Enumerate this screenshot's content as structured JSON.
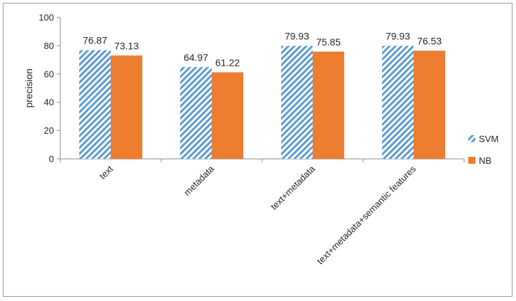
{
  "chart_data": {
    "type": "bar",
    "title": "",
    "xlabel": "",
    "ylabel": "precision",
    "ylim": [
      0,
      100
    ],
    "yticks": [
      0,
      20,
      40,
      60,
      80,
      100
    ],
    "grid": false,
    "legend_position": "right",
    "categories": [
      "text",
      "metadata",
      "text+metadata",
      "text+metadata+semantic features"
    ],
    "series": [
      {
        "name": "SVM",
        "values": [
          76.87,
          64.97,
          79.93,
          79.93
        ],
        "value_labels": [
          "76.87",
          "64.97",
          "79.93",
          "79.93"
        ],
        "color": "#5b9bd5",
        "pattern": "diagonal-hatch"
      },
      {
        "name": "NB",
        "values": [
          73.13,
          61.22,
          75.85,
          76.53
        ],
        "value_labels": [
          "73.13",
          "61.22",
          "75.85",
          "76.53"
        ],
        "color": "#ed7d31",
        "pattern": "solid"
      }
    ]
  }
}
